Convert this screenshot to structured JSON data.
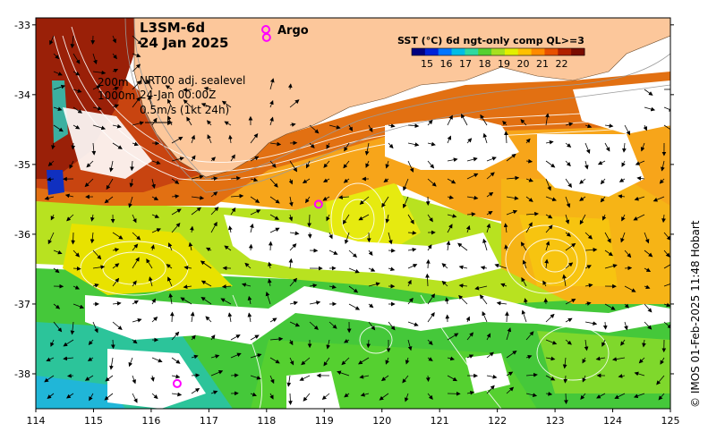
{
  "map": {
    "title_line1": "L3SM-6d",
    "title_line2": "24 Jan 2025",
    "argo_label": "Argo",
    "argo_color": "#ff00ff",
    "contour_line1": "200m",
    "contour_line2": "1000m",
    "sealevel_label": "NRT00 adj. sealevel",
    "time_label": "24-Jan 00:00Z",
    "scale_label": "0.5m/s (1kt 24h)",
    "credit": "© IMOS 01-Feb-2025 11:48 Hobart",
    "land_color": "#fcc79b",
    "lon_ticks": [
      "114",
      "115",
      "116",
      "117",
      "118",
      "119",
      "120",
      "121",
      "122",
      "123",
      "124",
      "125"
    ],
    "lat_ticks": [
      "-33",
      "-34",
      "-35",
      "-36",
      "-37",
      "-38"
    ],
    "argo_floats": [
      {
        "lon": 118.0,
        "lat": -33.18
      },
      {
        "lon": 118.9,
        "lat": -35.57
      },
      {
        "lon": 116.45,
        "lat": -38.14
      }
    ]
  },
  "colorbar": {
    "title": "SST (°C) 6d ngt-only comp QL>=3",
    "ticks": [
      "15",
      "16",
      "17",
      "18",
      "19",
      "20",
      "21",
      "22"
    ],
    "colors": [
      "#000080",
      "#0022d8",
      "#0076ff",
      "#00bde6",
      "#2fd9a0",
      "#55d030",
      "#a6e020",
      "#e2ef00",
      "#ffc000",
      "#ff8a00",
      "#e85000",
      "#b02000",
      "#7a0c00"
    ]
  }
}
